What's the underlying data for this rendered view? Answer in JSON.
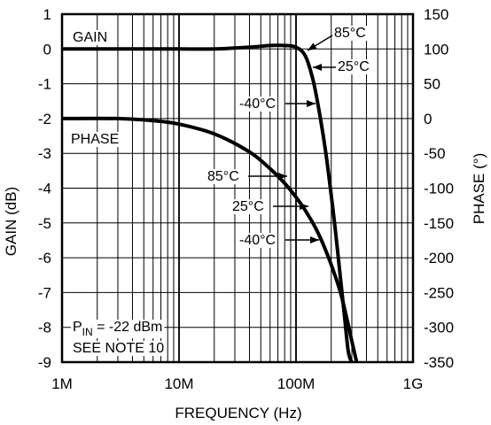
{
  "chart_data": {
    "type": "line",
    "title": "",
    "xlabel": "FREQUENCY (Hz)",
    "ylabel_left": "GAIN (dB)",
    "ylabel_right": "PHASE (°)",
    "x_scale": "log",
    "x_range": [
      1000000,
      1000000000
    ],
    "x_ticks": [
      {
        "value": 1000000,
        "label": "1M"
      },
      {
        "value": 10000000,
        "label": "10M"
      },
      {
        "value": 100000000,
        "label": "100M"
      },
      {
        "value": 1000000000,
        "label": "1G"
      }
    ],
    "y_left_range": [
      -9,
      1
    ],
    "y_left_ticks": [
      "1",
      "0",
      "-1",
      "-2",
      "-3",
      "-4",
      "-5",
      "-6",
      "-7",
      "-8",
      "-9"
    ],
    "y_right_range": [
      -350,
      150
    ],
    "y_right_ticks": [
      "150",
      "100",
      "50",
      "0",
      "-50",
      "-100",
      "-150",
      "-200",
      "-250",
      "-300",
      "-350"
    ],
    "grid": true,
    "series": [
      {
        "name": "GAIN",
        "axis": "left",
        "x": [
          1000000,
          5000000,
          10000000,
          20000000,
          40000000,
          60000000,
          80000000,
          100000000,
          120000000,
          140000000,
          160000000,
          180000000,
          200000000,
          220000000,
          240000000,
          260000000,
          280000000,
          300000000
        ],
        "y": [
          0,
          0,
          0,
          0,
          0.05,
          0.1,
          0.1,
          0.05,
          -0.2,
          -0.9,
          -1.9,
          -3.0,
          -4.2,
          -5.4,
          -6.6,
          -7.7,
          -8.7,
          -9.0
        ]
      },
      {
        "name": "PHASE",
        "axis": "right",
        "x": [
          1000000,
          3000000,
          6000000,
          10000000,
          20000000,
          40000000,
          60000000,
          80000000,
          100000000,
          120000000,
          150000000,
          180000000,
          210000000,
          240000000,
          270000000,
          300000000,
          330000000
        ],
        "y": [
          0,
          0,
          -3,
          -8,
          -22,
          -48,
          -72,
          -93,
          -113,
          -132,
          -160,
          -190,
          -220,
          -250,
          -285,
          -320,
          -350
        ]
      }
    ],
    "annotations": [
      {
        "text": "GAIN"
      },
      {
        "text": "PHASE"
      },
      {
        "text": "85°C"
      },
      {
        "text": "25°C"
      },
      {
        "text": "-40°C"
      },
      {
        "text": "85°C"
      },
      {
        "text": "25°C"
      },
      {
        "text": "-40°C"
      }
    ],
    "note_line1_main": "P",
    "note_line1_sub": "IN",
    "note_line1_rest": " = -22 dBm",
    "note_line2": "SEE NOTE 10"
  }
}
